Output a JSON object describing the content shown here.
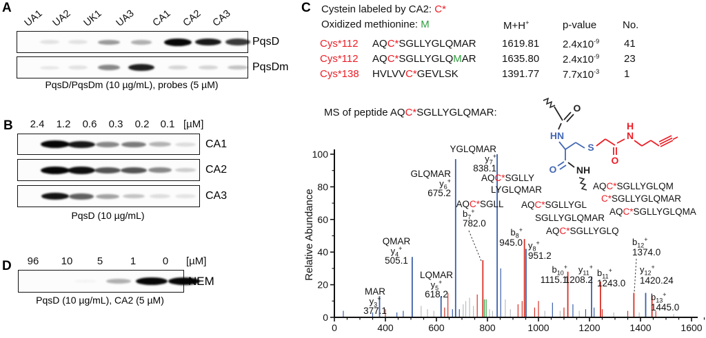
{
  "panel_a": {
    "label": "A",
    "lane_labels": [
      "UA1",
      "UA2",
      "UK1",
      "UA3",
      "CA1",
      "CA2",
      "CA3"
    ],
    "strips": [
      {
        "name": "PqsD",
        "bands": [
          0.1,
          0.1,
          0.38,
          0.3,
          1.0,
          0.88,
          0.75
        ]
      },
      {
        "name": "PqsDm",
        "bands": [
          0.08,
          0.1,
          0.45,
          0.85,
          0.15,
          0.15,
          0.22
        ]
      }
    ],
    "caption": "PqsD/PqsDm (10 µg/mL), probes (5 µM)"
  },
  "panel_b": {
    "label": "B",
    "conc_labels": [
      "2.4",
      "1.2",
      "0.6",
      "0.3",
      "0.2",
      "0.1"
    ],
    "unit_label": "[µM]",
    "strips": [
      {
        "name": "CA1",
        "bands": [
          1.0,
          0.88,
          0.45,
          0.5,
          0.28,
          0.12
        ]
      },
      {
        "name": "CA2",
        "bands": [
          1.0,
          0.92,
          0.65,
          0.65,
          0.45,
          0.18
        ]
      },
      {
        "name": "CA3",
        "bands": [
          0.9,
          0.6,
          0.35,
          0.22,
          0.12,
          0.09
        ]
      }
    ],
    "caption": "PqsD (10 µg/mL)"
  },
  "panel_d": {
    "label": "D",
    "conc_labels": [
      "96",
      "10",
      "5",
      "1",
      "0"
    ],
    "unit_label": "[µM]",
    "strips": [
      {
        "name": "NEM",
        "bands": [
          0,
          0.03,
          0.3,
          0.95,
          1.0
        ]
      }
    ],
    "caption": "PqsD (10 µg/mL), CA2 (5 µM)"
  },
  "panel_c": {
    "label": "C",
    "line1": [
      [
        "Cystein labeled by CA2: ",
        "k"
      ],
      [
        "C*",
        "r"
      ]
    ],
    "line2": [
      [
        "Oxidized methionine: ",
        "k"
      ],
      [
        "M",
        "g"
      ]
    ],
    "table": {
      "h_mass": {
        "base": "M+H",
        "sup": "+"
      },
      "h_p": "p-value",
      "h_no": "No.",
      "rows": [
        {
          "site": "Cys*112",
          "seq": [
            [
              "AQ",
              "k"
            ],
            [
              "C*",
              "r"
            ],
            [
              "SGLLYGLQMAR",
              "k"
            ]
          ],
          "mass": "1619.81",
          "p": {
            "base": "2.4x10",
            "sup": "-9"
          },
          "no": "41"
        },
        {
          "site": "Cys*112",
          "seq": [
            [
              "AQ",
              "k"
            ],
            [
              "C*",
              "r"
            ],
            [
              "SGLLYGLQ",
              "k"
            ],
            [
              "M",
              "g"
            ],
            [
              "AR",
              "k"
            ]
          ],
          "mass": "1635.80",
          "p": {
            "base": "2.4x10",
            "sup": "-9"
          },
          "no": "23"
        },
        {
          "site": "Cys*138",
          "seq": [
            [
              "HVLVV",
              "k"
            ],
            [
              "C*",
              "r"
            ],
            [
              "GEVLSK",
              "k"
            ]
          ],
          "mass": "1391.77",
          "p": {
            "base": "7.7x10",
            "sup": "-3"
          },
          "no": "1"
        }
      ]
    },
    "ms_title": [
      [
        "MS of peptide AQ",
        "k"
      ],
      [
        "C*",
        "r"
      ],
      [
        "SGLLYGLQMAR:",
        "k"
      ]
    ]
  },
  "structure": {
    "atoms": {
      "o_top": "O",
      "hn": "HN",
      "s": "S",
      "o_mid": "O",
      "n": "N",
      "h": "H",
      "o_low": "O",
      "nh": "NH"
    }
  },
  "chart_data": {
    "type": "bar",
    "title": "MS of peptide AQC*SGLLYGLQMAR",
    "xlabel": "",
    "ylabel": "Relative Abundance",
    "x_tick_labels": [
      "0",
      "400",
      "600",
      "800",
      "1000",
      "1200",
      "1400",
      "1600"
    ],
    "y_ticks": [
      0,
      20,
      40,
      60,
      80,
      100
    ],
    "ylim": [
      0,
      100
    ],
    "labeled_peaks": [
      {
        "key": "y3",
        "frag": "MAR",
        "ion": "y",
        "n": "3",
        "mz": 377.1,
        "mz_label": "377.1",
        "rel": 13,
        "color": "blue"
      },
      {
        "key": "y4",
        "frag": "QMAR",
        "ion": "y",
        "n": "4",
        "mz": 505.1,
        "mz_label": "505.1",
        "rel": 37,
        "color": "blue"
      },
      {
        "key": "y5",
        "frag": "LQMAR",
        "ion": "y",
        "n": "5",
        "mz": 618.2,
        "mz_label": "618.2",
        "rel": 13,
        "color": "blue"
      },
      {
        "key": "y6",
        "frag": "GLQMAR",
        "ion": "y",
        "n": "6",
        "mz": 675.2,
        "mz_label": "675.2",
        "rel": 97,
        "color": "blue"
      },
      {
        "key": "y7",
        "frag": "YGLQMAR",
        "ion": "y",
        "n": "7",
        "mz": 838.1,
        "mz_label": "838.1",
        "rel": 100,
        "color": "blue"
      },
      {
        "key": "b7",
        "frag": "AQC*SGLL",
        "ion": "b",
        "n": "7",
        "mz": 782.0,
        "mz_label": "782.0",
        "rel": 35,
        "color": "red"
      },
      {
        "key": "b8",
        "ion": "b",
        "n": "8",
        "mz": 945.0,
        "mz_label": "945.0",
        "rel": 48,
        "color": "red"
      },
      {
        "key": "y8",
        "ion": "y",
        "n": "8",
        "mz": 951.2,
        "mz_label": "951.2",
        "rel": 42,
        "color": "blue"
      },
      {
        "key": "b10",
        "ion": "b",
        "n": "10",
        "mz": 1115.1,
        "mz_label": "1115.1",
        "rel": 28,
        "color": "red"
      },
      {
        "key": "y11",
        "ion": "y",
        "n": "11",
        "mz": 1208.2,
        "mz_label": "1208.2",
        "rel": 25,
        "color": "blue"
      },
      {
        "key": "b11",
        "ion": "b",
        "n": "11",
        "mz": 1243.0,
        "mz_label": "1243.0",
        "rel": 22,
        "color": "red"
      },
      {
        "key": "b12",
        "ion": "b",
        "n": "12",
        "mz": 1374.0,
        "mz_label": "1374.0",
        "rel": 15,
        "color": "red"
      },
      {
        "key": "y12",
        "ion": "y",
        "n": "12",
        "mz": 1420.24,
        "mz_label": "1420.24",
        "rel": 15,
        "color": "blue"
      },
      {
        "key": "b13",
        "ion": "b",
        "n": "13",
        "mz": 1445.0,
        "mz_label": "1445.0",
        "rel": 13,
        "color": "red"
      }
    ],
    "sequence_annotations": [
      "AQC*SGLLY",
      "LYGLQMAR",
      "AQC*SGLLYGL",
      "SGLLYGLQMAR",
      "AQC*SGLLYGLQ",
      "AQC*SGLLYGLQM",
      "C*SGLLYGLQMAR",
      "AQC*SGLLYGLQMA"
    ],
    "minor_peaks": [
      [
        235,
        4,
        "blue"
      ],
      [
        350,
        3,
        "blue"
      ],
      [
        400,
        5,
        "red"
      ],
      [
        445,
        3,
        "blue"
      ],
      [
        470,
        4,
        "blue"
      ],
      [
        540,
        7,
        "gray"
      ],
      [
        565,
        5,
        "gray"
      ],
      [
        590,
        4,
        "gray"
      ],
      [
        632,
        6,
        "red"
      ],
      [
        645,
        15,
        "red"
      ],
      [
        663,
        5,
        "blue"
      ],
      [
        690,
        5,
        "blue"
      ],
      [
        705,
        8,
        "gray"
      ],
      [
        715,
        10,
        "gray"
      ],
      [
        730,
        12,
        "gray"
      ],
      [
        745,
        7,
        "gray"
      ],
      [
        760,
        14,
        "red"
      ],
      [
        788,
        11,
        "green"
      ],
      [
        795,
        11,
        "green"
      ],
      [
        808,
        5,
        "gray"
      ],
      [
        820,
        4,
        "gray"
      ],
      [
        852,
        30,
        "blue"
      ],
      [
        870,
        11,
        "gray"
      ],
      [
        890,
        5,
        "gray"
      ],
      [
        920,
        8,
        "red"
      ],
      [
        936,
        10,
        "red"
      ],
      [
        985,
        6,
        "red"
      ],
      [
        1000,
        10,
        "red"
      ],
      [
        1025,
        4,
        "gray"
      ],
      [
        1055,
        9,
        "blue"
      ],
      [
        1085,
        4,
        "gray"
      ],
      [
        1100,
        6,
        "red"
      ],
      [
        1135,
        8,
        "blue"
      ],
      [
        1160,
        4,
        "gray"
      ],
      [
        1185,
        5,
        "blue"
      ],
      [
        1218,
        6,
        "blue"
      ],
      [
        1250,
        5,
        "red"
      ],
      [
        1295,
        3,
        "gray"
      ],
      [
        1350,
        4,
        "red"
      ],
      [
        1395,
        3,
        "gray"
      ],
      [
        1460,
        4,
        "red"
      ],
      [
        1530,
        2,
        "gray"
      ]
    ],
    "colors": {
      "blue": "#3b5fa8",
      "red": "#d92f26",
      "green": "#3fa047",
      "gray": "#b8bcc0",
      "text_red": "#ed1c24"
    }
  }
}
